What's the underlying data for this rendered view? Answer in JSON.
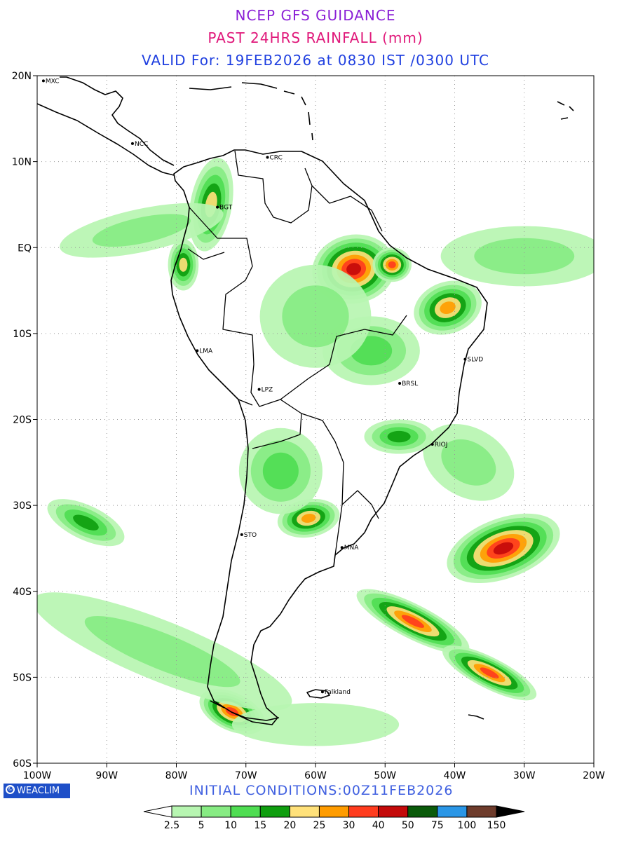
{
  "header": {
    "title": "NCEP GFS GUIDANCE",
    "subtitle": "PAST 24HRS RAINFALL (mm)",
    "valid": "VALID For: 19FEB2026 at 0830 IST /0300 UTC"
  },
  "colors": {
    "title": "#8a1fd6",
    "subtitle": "#e0187a",
    "valid": "#2040e0",
    "init": "#4060e0"
  },
  "map": {
    "lon_range": [
      -100,
      -20
    ],
    "lat_range": [
      -60,
      20
    ],
    "lon_ticks": [
      {
        "value": -100,
        "label": "100W"
      },
      {
        "value": -90,
        "label": "90W"
      },
      {
        "value": -80,
        "label": "80W"
      },
      {
        "value": -70,
        "label": "70W"
      },
      {
        "value": -60,
        "label": "60W"
      },
      {
        "value": -50,
        "label": "50W"
      },
      {
        "value": -40,
        "label": "40W"
      },
      {
        "value": -30,
        "label": "30W"
      },
      {
        "value": -20,
        "label": "20W"
      }
    ],
    "lat_ticks": [
      {
        "value": 20,
        "label": "20N"
      },
      {
        "value": 10,
        "label": "10N"
      },
      {
        "value": 0,
        "label": "EQ"
      },
      {
        "value": -10,
        "label": "10S"
      },
      {
        "value": -20,
        "label": "20S"
      },
      {
        "value": -30,
        "label": "30S"
      },
      {
        "value": -40,
        "label": "40S"
      },
      {
        "value": -50,
        "label": "50S"
      },
      {
        "value": -60,
        "label": "60S"
      }
    ],
    "cities": [
      {
        "label": "MXC",
        "lon": -99.1,
        "lat": 19.4
      },
      {
        "label": "NCC",
        "lon": -86.3,
        "lat": 12.1
      },
      {
        "label": "CRC",
        "lon": -66.9,
        "lat": 10.5
      },
      {
        "label": "BGT",
        "lon": -74.1,
        "lat": 4.7
      },
      {
        "label": "LMA",
        "lon": -77.0,
        "lat": -12.0
      },
      {
        "label": "LPZ",
        "lon": -68.1,
        "lat": -16.5
      },
      {
        "label": "BRSL",
        "lon": -47.9,
        "lat": -15.8
      },
      {
        "label": "SLVD",
        "lon": -38.5,
        "lat": -13.0
      },
      {
        "label": "RIOJ",
        "lon": -43.2,
        "lat": -22.9
      },
      {
        "label": "STO",
        "lon": -70.6,
        "lat": -33.4
      },
      {
        "label": "MNA",
        "lon": -56.2,
        "lat": -34.9
      },
      {
        "label": "Falkland",
        "lon": -59.0,
        "lat": -51.7
      }
    ]
  },
  "rain_cells": [
    {
      "lon": -54.5,
      "lat": -2.5,
      "rx": 6.0,
      "ry": 4.0,
      "rot": -10,
      "level": 8
    },
    {
      "lon": -49.0,
      "lat": -2.0,
      "rx": 2.8,
      "ry": 2.0,
      "rot": 0,
      "level": 7
    },
    {
      "lon": -41.0,
      "lat": -7.0,
      "rx": 5.0,
      "ry": 3.0,
      "rot": -20,
      "level": 6
    },
    {
      "lon": -33.0,
      "lat": -35.0,
      "rx": 8.5,
      "ry": 3.5,
      "rot": -20,
      "level": 8
    },
    {
      "lon": -46.0,
      "lat": -43.5,
      "rx": 9.0,
      "ry": 2.0,
      "rot": 27,
      "level": 7
    },
    {
      "lon": -35.0,
      "lat": -49.5,
      "rx": 7.5,
      "ry": 1.8,
      "rot": 27,
      "level": 7
    },
    {
      "lon": -72.0,
      "lat": -54.0,
      "rx": 5.0,
      "ry": 2.2,
      "rot": 25,
      "level": 7
    },
    {
      "lon": -61.0,
      "lat": -31.5,
      "rx": 4.5,
      "ry": 2.2,
      "rot": -10,
      "level": 6
    },
    {
      "lon": -75.0,
      "lat": 5.0,
      "rx": 3.0,
      "ry": 5.5,
      "rot": 10,
      "level": 5
    },
    {
      "lon": -79.0,
      "lat": -2.0,
      "rx": 2.2,
      "ry": 3.0,
      "rot": 0,
      "level": 5
    },
    {
      "lon": -48.0,
      "lat": -22.0,
      "rx": 5.0,
      "ry": 2.0,
      "rot": 0,
      "level": 4
    },
    {
      "lon": -52.0,
      "lat": -12.0,
      "rx": 7.0,
      "ry": 4.0,
      "rot": 0,
      "level": 3
    },
    {
      "lon": -65.0,
      "lat": -26.0,
      "rx": 6.0,
      "ry": 5.0,
      "rot": 0,
      "level": 3
    },
    {
      "lon": -93.0,
      "lat": -32.0,
      "rx": 6.0,
      "ry": 2.0,
      "rot": 25,
      "level": 4
    },
    {
      "lon": -85.0,
      "lat": 2.0,
      "rx": 12.0,
      "ry": 2.5,
      "rot": -12,
      "level": 2
    },
    {
      "lon": -30.0,
      "lat": -1.0,
      "rx": 12.0,
      "ry": 3.5,
      "rot": 0,
      "level": 2
    },
    {
      "lon": -82.0,
      "lat": -47.0,
      "rx": 20.0,
      "ry": 3.5,
      "rot": 22,
      "level": 2
    },
    {
      "lon": -60.0,
      "lat": -55.5,
      "rx": 12.0,
      "ry": 2.5,
      "rot": 0,
      "level": 1
    },
    {
      "lon": -60.0,
      "lat": -8.0,
      "rx": 8.0,
      "ry": 6.0,
      "rot": 0,
      "level": 2
    },
    {
      "lon": -38.0,
      "lat": -25.0,
      "rx": 7.0,
      "ry": 4.0,
      "rot": 30,
      "level": 2
    }
  ],
  "legend": {
    "labels": [
      "2.5",
      "5",
      "10",
      "15",
      "20",
      "25",
      "30",
      "40",
      "50",
      "75",
      "100",
      "150"
    ],
    "colors": [
      "#ffffff",
      "#b7f5b1",
      "#87eb83",
      "#4fdd52",
      "#0f9e0f",
      "#ffe17a",
      "#ff9c00",
      "#ff3c1e",
      "#c40a0a",
      "#0a5a0a",
      "#2a96e6",
      "#6e3c2c",
      "#000000"
    ]
  },
  "footer": {
    "badge": "WEACLIM",
    "badge_symbol": "©",
    "init": "INITIAL  CONDITIONS:00Z11FEB2026"
  }
}
